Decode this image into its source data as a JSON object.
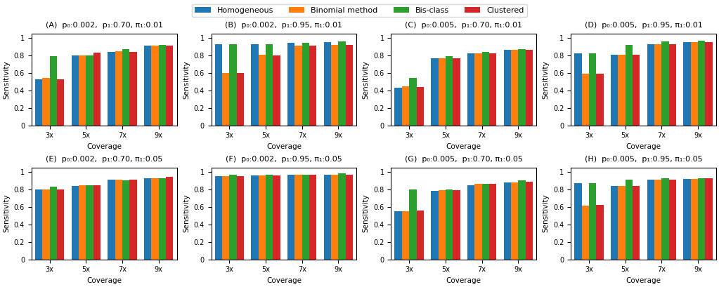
{
  "chart_data": [
    {
      "type": "bar",
      "title": "(A)  p₀:0.002,  p₁:0.70, π₁:0.01",
      "x_label": "Coverage",
      "y_label": "Sensitivity",
      "categories": [
        "3x",
        "5x",
        "7x",
        "9x"
      ],
      "series": [
        {
          "name": "Homogeneous",
          "values": [
            0.53,
            0.8,
            0.84,
            0.91
          ]
        },
        {
          "name": "Binomial method",
          "values": [
            0.54,
            0.8,
            0.85,
            0.91
          ]
        },
        {
          "name": "Bis-class",
          "values": [
            0.79,
            0.8,
            0.87,
            0.92
          ]
        },
        {
          "name": "Clustered",
          "values": [
            0.53,
            0.83,
            0.84,
            0.91
          ]
        }
      ],
      "ylim": [
        0,
        1.05
      ],
      "yticks": [
        0,
        0.2,
        0.4,
        0.6,
        0.8,
        1
      ],
      "legend": "upper center"
    },
    {
      "type": "bar",
      "title": "(B)  p₀:0.002,  p₁:0.95, π₁:0.01",
      "x_label": "Coverage",
      "y_label": "Sensitivity",
      "categories": [
        "3x",
        "5x",
        "7x",
        "9x"
      ],
      "series": [
        {
          "name": "Homogeneous",
          "values": [
            0.93,
            0.93,
            0.94,
            0.95
          ]
        },
        {
          "name": "Binomial method",
          "values": [
            0.6,
            0.81,
            0.91,
            0.92
          ]
        },
        {
          "name": "Bis-class",
          "values": [
            0.93,
            0.93,
            0.94,
            0.96
          ]
        },
        {
          "name": "Clustered",
          "values": [
            0.6,
            0.8,
            0.91,
            0.92
          ]
        }
      ],
      "ylim": [
        0,
        1.05
      ],
      "yticks": [
        0,
        0.2,
        0.4,
        0.6,
        0.8,
        1
      ]
    },
    {
      "type": "bar",
      "title": "(C)  p₀:0.005,  p₁:0.70, π₁:0.01",
      "x_label": "Coverage",
      "y_label": "Sensitivity",
      "categories": [
        "3x",
        "5x",
        "7x",
        "9x"
      ],
      "series": [
        {
          "name": "Homogeneous",
          "values": [
            0.43,
            0.77,
            0.82,
            0.86
          ]
        },
        {
          "name": "Binomial method",
          "values": [
            0.45,
            0.77,
            0.82,
            0.86
          ]
        },
        {
          "name": "Bis-class",
          "values": [
            0.54,
            0.79,
            0.84,
            0.87
          ]
        },
        {
          "name": "Clustered",
          "values": [
            0.44,
            0.77,
            0.82,
            0.86
          ]
        }
      ],
      "ylim": [
        0,
        1.05
      ],
      "yticks": [
        0,
        0.2,
        0.4,
        0.6,
        0.8,
        1
      ]
    },
    {
      "type": "bar",
      "title": "(D)  p₀:0.005,  p₁:0.95, π₁:0.01",
      "x_label": "Coverage",
      "y_label": "Sensitivity",
      "categories": [
        "3x",
        "5x",
        "7x",
        "9x"
      ],
      "series": [
        {
          "name": "Homogeneous",
          "values": [
            0.82,
            0.81,
            0.93,
            0.95
          ]
        },
        {
          "name": "Binomial method",
          "values": [
            0.59,
            0.81,
            0.93,
            0.95
          ]
        },
        {
          "name": "Bis-class",
          "values": [
            0.82,
            0.92,
            0.96,
            0.97
          ]
        },
        {
          "name": "Clustered",
          "values": [
            0.59,
            0.81,
            0.93,
            0.95
          ]
        }
      ],
      "ylim": [
        0,
        1.05
      ],
      "yticks": [
        0,
        0.2,
        0.4,
        0.6,
        0.8,
        1
      ]
    },
    {
      "type": "bar",
      "title": "(E)  p₀:0.002,  p₁:0.70, π₁:0.05",
      "x_label": "Coverage",
      "y_label": "Sensitivity",
      "categories": [
        "3x",
        "5x",
        "7x",
        "9x"
      ],
      "series": [
        {
          "name": "Homogeneous",
          "values": [
            0.8,
            0.84,
            0.91,
            0.93
          ]
        },
        {
          "name": "Binomial method",
          "values": [
            0.8,
            0.85,
            0.91,
            0.93
          ]
        },
        {
          "name": "Bis-class",
          "values": [
            0.83,
            0.85,
            0.9,
            0.93
          ]
        },
        {
          "name": "Clustered",
          "values": [
            0.8,
            0.85,
            0.91,
            0.94
          ]
        }
      ],
      "ylim": [
        0,
        1.05
      ],
      "yticks": [
        0,
        0.2,
        0.4,
        0.6,
        0.8,
        1
      ]
    },
    {
      "type": "bar",
      "title": "(F)  p₀:0.002,  p₁:0.95, π₁:0.05",
      "x_label": "Coverage",
      "y_label": "Sensitivity",
      "categories": [
        "3x",
        "5x",
        "7x",
        "9x"
      ],
      "series": [
        {
          "name": "Homogeneous",
          "values": [
            0.95,
            0.96,
            0.97,
            0.97
          ]
        },
        {
          "name": "Binomial method",
          "values": [
            0.95,
            0.96,
            0.97,
            0.97
          ]
        },
        {
          "name": "Bis-class",
          "values": [
            0.97,
            0.97,
            0.97,
            0.98
          ]
        },
        {
          "name": "Clustered",
          "values": [
            0.95,
            0.96,
            0.97,
            0.97
          ]
        }
      ],
      "ylim": [
        0,
        1.05
      ],
      "yticks": [
        0,
        0.2,
        0.4,
        0.6,
        0.8,
        1
      ]
    },
    {
      "type": "bar",
      "title": "(G)  p₀:0.005,  p₁:0.70, π₁:0.05",
      "x_label": "Coverage",
      "y_label": "Sensitivity",
      "categories": [
        "3x",
        "5x",
        "7x",
        "9x"
      ],
      "series": [
        {
          "name": "Homogeneous",
          "values": [
            0.55,
            0.78,
            0.85,
            0.88
          ]
        },
        {
          "name": "Binomial method",
          "values": [
            0.55,
            0.79,
            0.86,
            0.88
          ]
        },
        {
          "name": "Bis-class",
          "values": [
            0.8,
            0.8,
            0.86,
            0.9
          ]
        },
        {
          "name": "Clustered",
          "values": [
            0.56,
            0.79,
            0.86,
            0.89
          ]
        }
      ],
      "ylim": [
        0,
        1.05
      ],
      "yticks": [
        0,
        0.2,
        0.4,
        0.6,
        0.8,
        1
      ]
    },
    {
      "type": "bar",
      "title": "(H)  p₀:0.005,  p₁:0.95, π₁:0.05",
      "x_label": "Coverage",
      "y_label": "Sensitivity",
      "categories": [
        "3x",
        "5x",
        "7x",
        "9x"
      ],
      "series": [
        {
          "name": "Homogeneous",
          "values": [
            0.87,
            0.84,
            0.91,
            0.92
          ]
        },
        {
          "name": "Binomial method",
          "values": [
            0.61,
            0.84,
            0.91,
            0.92
          ]
        },
        {
          "name": "Bis-class",
          "values": [
            0.87,
            0.91,
            0.93,
            0.93
          ]
        },
        {
          "name": "Clustered",
          "values": [
            0.62,
            0.84,
            0.91,
            0.93
          ]
        }
      ],
      "ylim": [
        0,
        1.05
      ],
      "yticks": [
        0,
        0.2,
        0.4,
        0.6,
        0.8,
        1
      ]
    }
  ]
}
